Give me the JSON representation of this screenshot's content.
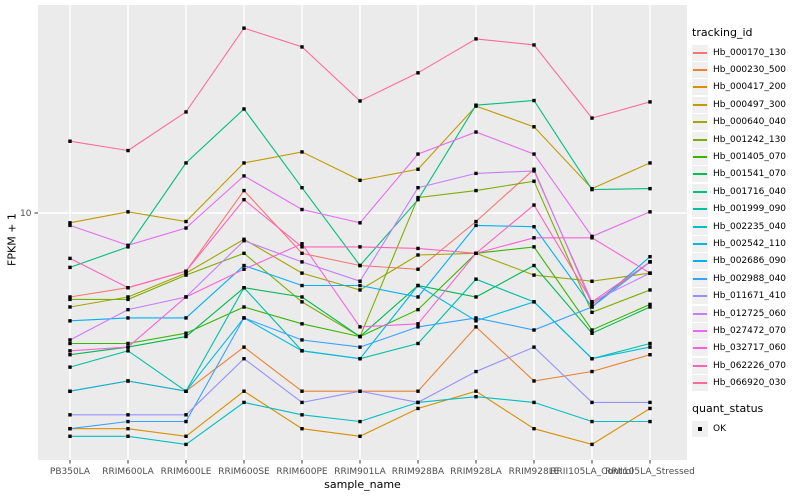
{
  "chart_data": {
    "type": "line",
    "title": "",
    "xlabel": "sample_name",
    "ylabel": "FPKM + 1",
    "y_scale": "log10",
    "y_ticks": [
      {
        "label": "10",
        "value": 10
      }
    ],
    "y_range_approx": [
      1.3,
      55
    ],
    "grid": "major-only",
    "marker": {
      "shape": "square",
      "color": "#000000"
    },
    "legend_position": "right",
    "colors": {
      "panel_bg": "#EBEBEB",
      "grid": "#FFFFFF",
      "tick_text": "#4D4D4D",
      "title_text": "#000000",
      "legend_key_bg": "#F0F0F0"
    },
    "x_categories": [
      "PB350LA",
      "RRIM600LA",
      "RRIM600LE",
      "RRIM600SE",
      "RRIM600PE",
      "RRIM901LA",
      "RRIM928BA",
      "RRIM928LA",
      "RRIM928LE",
      "RRII105LA_Control",
      "RRII105LA_Stressed"
    ],
    "legend": {
      "color_title": "tracking_id",
      "shape_title": "quant_status",
      "shape_items": [
        {
          "label": "OK",
          "marker": "black-square"
        }
      ]
    },
    "series": [
      {
        "name": "Hb_000170_130",
        "color": "#F8766D",
        "values": [
          4.9,
          5.3,
          6.1,
          12.1,
          7.1,
          6.4,
          6.2,
          9.3,
          14.5,
          4.6,
          6.6
        ]
      },
      {
        "name": "Hb_000230_500",
        "color": "#EA8331",
        "values": [
          2.2,
          2.4,
          2.2,
          3.2,
          2.2,
          2.2,
          2.2,
          3.8,
          2.4,
          2.6,
          3.0
        ]
      },
      {
        "name": "Hb_000417_200",
        "color": "#D89000",
        "values": [
          1.6,
          1.6,
          1.5,
          2.2,
          1.6,
          1.5,
          1.9,
          2.2,
          1.6,
          1.4,
          1.9
        ]
      },
      {
        "name": "Hb_000497_300",
        "color": "#C09B00",
        "values": [
          9.2,
          10.1,
          9.3,
          15.3,
          16.8,
          13.2,
          14.5,
          24.8,
          20.8,
          12.3,
          15.3
        ]
      },
      {
        "name": "Hb_000640_040",
        "color": "#A3A500",
        "values": [
          4.5,
          4.9,
          6.0,
          8.0,
          6.0,
          5.2,
          7.0,
          7.1,
          5.9,
          5.6,
          6.0
        ]
      },
      {
        "name": "Hb_001242_130",
        "color": "#7CAE00",
        "values": [
          4.8,
          4.8,
          5.9,
          7.1,
          4.7,
          3.5,
          11.4,
          12.1,
          13.1,
          4.3,
          5.2
        ]
      },
      {
        "name": "Hb_001405_070",
        "color": "#39B600",
        "values": [
          3.3,
          3.3,
          3.6,
          4.5,
          3.9,
          3.5,
          4.4,
          7.1,
          7.5,
          3.7,
          4.6
        ]
      },
      {
        "name": "Hb_001541_070",
        "color": "#00BB4E",
        "values": [
          3.0,
          3.2,
          3.5,
          5.3,
          4.9,
          3.5,
          5.4,
          4.9,
          6.4,
          3.6,
          4.5
        ]
      },
      {
        "name": "Hb_001716_040",
        "color": "#00BF7D",
        "values": [
          6.3,
          7.5,
          15.3,
          24.2,
          12.4,
          6.4,
          11.2,
          25.0,
          26.0,
          12.2,
          12.3
        ]
      },
      {
        "name": "Hb_001999_090",
        "color": "#00C1A3",
        "values": [
          2.7,
          3.1,
          2.2,
          5.3,
          3.1,
          2.9,
          3.3,
          5.7,
          4.7,
          2.9,
          3.3
        ]
      },
      {
        "name": "Hb_002235_040",
        "color": "#00BFC4",
        "values": [
          1.5,
          1.5,
          1.4,
          2.0,
          1.8,
          1.7,
          2.0,
          2.1,
          2.0,
          1.7,
          1.7
        ]
      },
      {
        "name": "Hb_002542_110",
        "color": "#00BAE0",
        "values": [
          2.2,
          2.4,
          2.2,
          4.1,
          3.1,
          2.9,
          5.4,
          4.0,
          4.7,
          2.9,
          3.2
        ]
      },
      {
        "name": "Hb_002686_090",
        "color": "#00B0F6",
        "values": [
          4.0,
          4.1,
          4.1,
          6.4,
          5.4,
          5.4,
          4.9,
          9.0,
          8.9,
          4.5,
          6.9
        ]
      },
      {
        "name": "Hb_002988_040",
        "color": "#35A2FF",
        "values": [
          1.6,
          1.7,
          1.7,
          4.1,
          3.4,
          3.2,
          3.8,
          4.1,
          3.7,
          4.5,
          6.6
        ]
      },
      {
        "name": "Hb_011671_410",
        "color": "#9590FF",
        "values": [
          1.8,
          1.8,
          1.8,
          2.9,
          2.0,
          2.2,
          2.0,
          2.6,
          3.2,
          2.0,
          2.0
        ]
      },
      {
        "name": "Hb_012725_060",
        "color": "#C77CFF",
        "values": [
          3.4,
          4.4,
          4.9,
          7.9,
          6.6,
          5.6,
          12.4,
          14.0,
          14.3,
          4.7,
          6.0
        ]
      },
      {
        "name": "Hb_027472_070",
        "color": "#E76BF3",
        "values": [
          9.0,
          7.6,
          8.8,
          13.7,
          10.3,
          9.2,
          16.5,
          19.9,
          16.5,
          8.2,
          10.1
        ]
      },
      {
        "name": "Hb_032717_060",
        "color": "#FA62DB",
        "values": [
          3.1,
          3.2,
          4.9,
          6.2,
          7.7,
          3.8,
          3.9,
          7.1,
          8.1,
          8.1,
          6.0
        ]
      },
      {
        "name": "Hb_062226_070",
        "color": "#FF62BC",
        "values": [
          6.8,
          5.3,
          6.1,
          11.2,
          7.5,
          7.5,
          7.4,
          7.1,
          10.7,
          4.7,
          6.6
        ]
      },
      {
        "name": "Hb_066920_030",
        "color": "#FF6A98",
        "values": [
          18.4,
          17.0,
          23.6,
          48.1,
          41.0,
          25.9,
          32.9,
          43.9,
          41.7,
          22.4,
          25.7
        ]
      }
    ]
  }
}
